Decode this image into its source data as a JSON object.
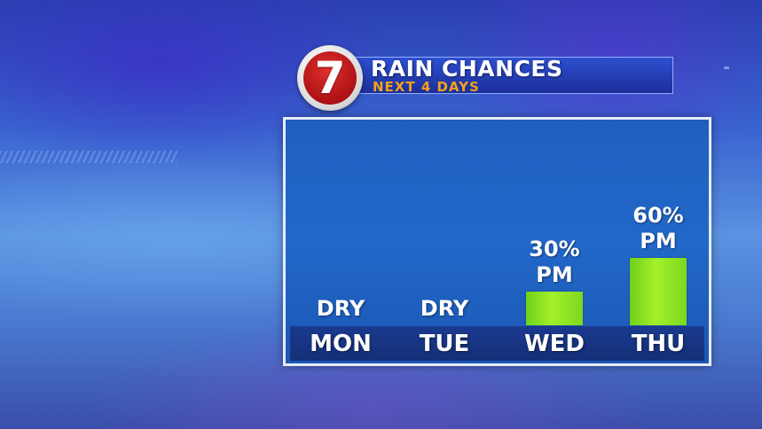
{
  "header": {
    "logo_text": "7",
    "title": "RAIN CHANCES",
    "subtitle": "NEXT 4 DAYS"
  },
  "colors": {
    "bar": "#9be824",
    "header_bg": "#1f3aa8",
    "subtitle": "#f5a11a",
    "logo_red": "#c81a1e"
  },
  "chart_data": {
    "type": "bar",
    "title": "RAIN CHANCES",
    "subtitle": "NEXT 4 DAYS",
    "categories": [
      "MON",
      "TUE",
      "WED",
      "THU"
    ],
    "values": [
      0,
      0,
      30,
      60
    ],
    "unit": "%",
    "ylim": [
      0,
      100
    ],
    "grid": false,
    "legend": "none",
    "labels": [
      [
        "DRY"
      ],
      [
        "DRY"
      ],
      [
        "30%",
        "PM"
      ],
      [
        "60%",
        "PM"
      ]
    ]
  }
}
